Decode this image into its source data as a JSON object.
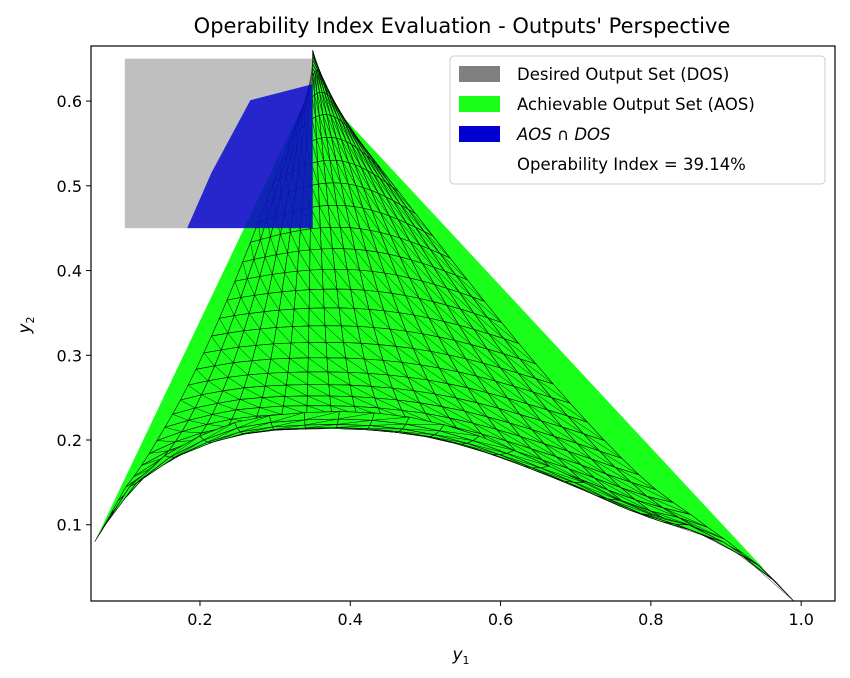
{
  "chart_data": {
    "type": "area",
    "title": "Operability Index Evaluation - Outputs' Perspective",
    "xlabel": "y",
    "xlabel_sub": "1",
    "ylabel": "y",
    "ylabel_sub": "2",
    "xlim": [
      0.055,
      1.045
    ],
    "ylim": [
      0.01,
      0.665
    ],
    "x_ticks": [
      0.2,
      0.4,
      0.6,
      0.8,
      1.0
    ],
    "x_tick_labels": [
      "0.2",
      "0.4",
      "0.6",
      "0.8",
      "1.0"
    ],
    "y_ticks": [
      0.1,
      0.2,
      0.3,
      0.4,
      0.5,
      0.6
    ],
    "y_tick_labels": [
      "0.1",
      "0.2",
      "0.3",
      "0.4",
      "0.5",
      "0.6"
    ],
    "grid": false,
    "legend_position": "top-right",
    "series": [
      {
        "name": "Desired Output Set (DOS)",
        "kind": "rectangle",
        "color": "#808080",
        "alpha": 0.5,
        "x_range": [
          0.1,
          0.35
        ],
        "y_range": [
          0.45,
          0.65
        ]
      },
      {
        "name": "Achievable Output Set (AOS)",
        "kind": "mesh-region",
        "color": "#1aff1a",
        "edge_color": "#000000",
        "boundary": [
          [
            0.06,
            0.08
          ],
          [
            0.35,
            0.62
          ],
          [
            0.99,
            0.01
          ]
        ],
        "lower_boundary": [
          [
            0.06,
            0.08
          ],
          [
            0.1,
            0.14
          ],
          [
            0.15,
            0.18
          ],
          [
            0.2,
            0.205
          ],
          [
            0.25,
            0.222
          ],
          [
            0.3,
            0.23
          ],
          [
            0.35,
            0.233
          ],
          [
            0.4,
            0.234
          ],
          [
            0.45,
            0.231
          ],
          [
            0.5,
            0.224
          ],
          [
            0.55,
            0.212
          ],
          [
            0.6,
            0.195
          ],
          [
            0.65,
            0.175
          ],
          [
            0.7,
            0.155
          ],
          [
            0.75,
            0.132
          ],
          [
            0.8,
            0.112
          ],
          [
            0.85,
            0.1
          ],
          [
            0.9,
            0.078
          ],
          [
            0.95,
            0.048
          ],
          [
            0.99,
            0.01
          ]
        ]
      },
      {
        "name": "AOS ∩ DOS",
        "kind": "polygon",
        "color": "#0000d0",
        "alpha": 0.8,
        "points": [
          [
            0.183,
            0.45
          ],
          [
            0.215,
            0.515
          ],
          [
            0.267,
            0.601
          ],
          [
            0.35,
            0.62
          ],
          [
            0.35,
            0.45
          ]
        ]
      }
    ],
    "annotations": [
      "Operability Index = 39.14%"
    ],
    "legend": [
      {
        "label": "Desired Output Set (DOS)",
        "swatch": "#808080"
      },
      {
        "label": "Achievable Output Set (AOS)",
        "swatch": "#1aff1a"
      },
      {
        "label": "AOS ∩ DOS",
        "swatch": "#0000d0",
        "italic": true
      },
      {
        "label": "Operability Index = 39.14%",
        "swatch": "none"
      }
    ]
  }
}
